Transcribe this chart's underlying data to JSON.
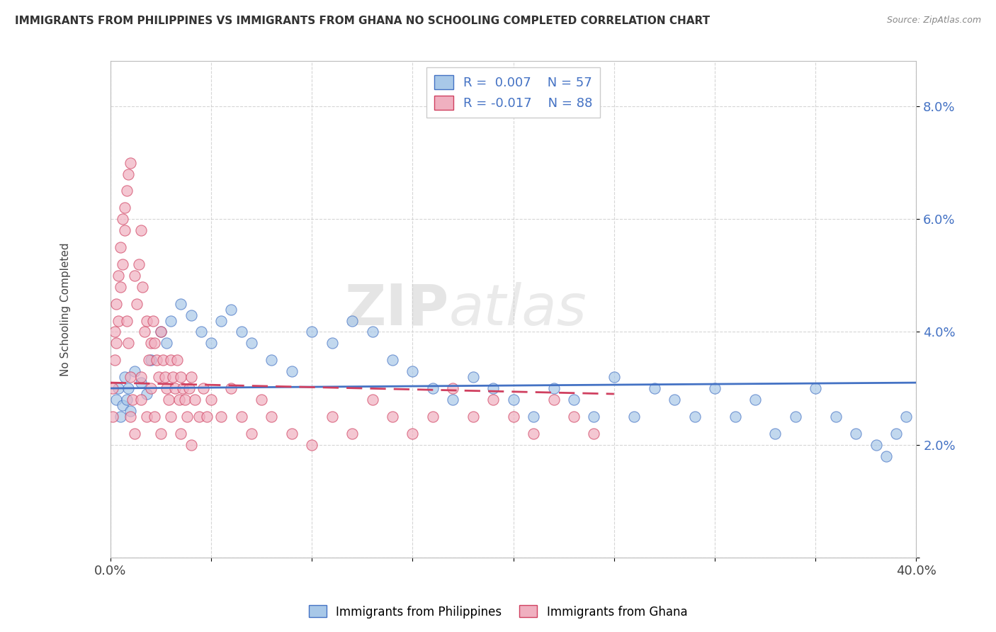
{
  "title": "IMMIGRANTS FROM PHILIPPINES VS IMMIGRANTS FROM GHANA NO SCHOOLING COMPLETED CORRELATION CHART",
  "source": "Source: ZipAtlas.com",
  "ylabel": "No Schooling Completed",
  "xlim": [
    0.0,
    0.4
  ],
  "ylim": [
    0.0,
    0.088
  ],
  "xticks": [
    0.0,
    0.05,
    0.1,
    0.15,
    0.2,
    0.25,
    0.3,
    0.35,
    0.4
  ],
  "yticks": [
    0.0,
    0.02,
    0.04,
    0.06,
    0.08
  ],
  "color_philippines": "#a8c8e8",
  "color_ghana": "#f0b0c0",
  "line_color_philippines": "#4472c4",
  "line_color_ghana": "#d04060",
  "watermark_zip": "ZIP",
  "watermark_atlas": "atlas",
  "background_color": "#ffffff",
  "grid_color": "#cccccc",
  "philippines_x": [
    0.003,
    0.004,
    0.005,
    0.006,
    0.007,
    0.008,
    0.009,
    0.01,
    0.012,
    0.015,
    0.018,
    0.02,
    0.025,
    0.028,
    0.03,
    0.035,
    0.04,
    0.045,
    0.05,
    0.055,
    0.06,
    0.065,
    0.07,
    0.08,
    0.09,
    0.1,
    0.11,
    0.12,
    0.13,
    0.14,
    0.15,
    0.16,
    0.17,
    0.18,
    0.19,
    0.2,
    0.21,
    0.22,
    0.23,
    0.24,
    0.25,
    0.26,
    0.27,
    0.28,
    0.29,
    0.3,
    0.31,
    0.32,
    0.33,
    0.34,
    0.35,
    0.36,
    0.37,
    0.38,
    0.385,
    0.39,
    0.395
  ],
  "philippines_y": [
    0.028,
    0.03,
    0.025,
    0.027,
    0.032,
    0.028,
    0.03,
    0.026,
    0.033,
    0.031,
    0.029,
    0.035,
    0.04,
    0.038,
    0.042,
    0.045,
    0.043,
    0.04,
    0.038,
    0.042,
    0.044,
    0.04,
    0.038,
    0.035,
    0.033,
    0.04,
    0.038,
    0.042,
    0.04,
    0.035,
    0.033,
    0.03,
    0.028,
    0.032,
    0.03,
    0.028,
    0.025,
    0.03,
    0.028,
    0.025,
    0.032,
    0.025,
    0.03,
    0.028,
    0.025,
    0.03,
    0.025,
    0.028,
    0.022,
    0.025,
    0.03,
    0.025,
    0.022,
    0.02,
    0.018,
    0.022,
    0.025
  ],
  "ghana_x": [
    0.001,
    0.001,
    0.002,
    0.002,
    0.003,
    0.003,
    0.004,
    0.004,
    0.005,
    0.005,
    0.006,
    0.006,
    0.007,
    0.007,
    0.008,
    0.008,
    0.009,
    0.009,
    0.01,
    0.01,
    0.011,
    0.012,
    0.013,
    0.014,
    0.015,
    0.015,
    0.016,
    0.017,
    0.018,
    0.019,
    0.02,
    0.021,
    0.022,
    0.023,
    0.024,
    0.025,
    0.026,
    0.027,
    0.028,
    0.029,
    0.03,
    0.031,
    0.032,
    0.033,
    0.034,
    0.035,
    0.036,
    0.037,
    0.038,
    0.039,
    0.04,
    0.042,
    0.044,
    0.046,
    0.048,
    0.05,
    0.055,
    0.06,
    0.065,
    0.07,
    0.075,
    0.08,
    0.09,
    0.1,
    0.11,
    0.12,
    0.13,
    0.14,
    0.15,
    0.16,
    0.17,
    0.18,
    0.19,
    0.2,
    0.21,
    0.22,
    0.23,
    0.24,
    0.01,
    0.012,
    0.015,
    0.018,
    0.02,
    0.022,
    0.025,
    0.03,
    0.035,
    0.04
  ],
  "ghana_y": [
    0.03,
    0.025,
    0.04,
    0.035,
    0.045,
    0.038,
    0.05,
    0.042,
    0.055,
    0.048,
    0.06,
    0.052,
    0.062,
    0.058,
    0.065,
    0.042,
    0.068,
    0.038,
    0.07,
    0.032,
    0.028,
    0.05,
    0.045,
    0.052,
    0.058,
    0.032,
    0.048,
    0.04,
    0.042,
    0.035,
    0.038,
    0.042,
    0.038,
    0.035,
    0.032,
    0.04,
    0.035,
    0.032,
    0.03,
    0.028,
    0.035,
    0.032,
    0.03,
    0.035,
    0.028,
    0.032,
    0.03,
    0.028,
    0.025,
    0.03,
    0.032,
    0.028,
    0.025,
    0.03,
    0.025,
    0.028,
    0.025,
    0.03,
    0.025,
    0.022,
    0.028,
    0.025,
    0.022,
    0.02,
    0.025,
    0.022,
    0.028,
    0.025,
    0.022,
    0.025,
    0.03,
    0.025,
    0.028,
    0.025,
    0.022,
    0.028,
    0.025,
    0.022,
    0.025,
    0.022,
    0.028,
    0.025,
    0.03,
    0.025,
    0.022,
    0.025,
    0.022,
    0.02
  ]
}
